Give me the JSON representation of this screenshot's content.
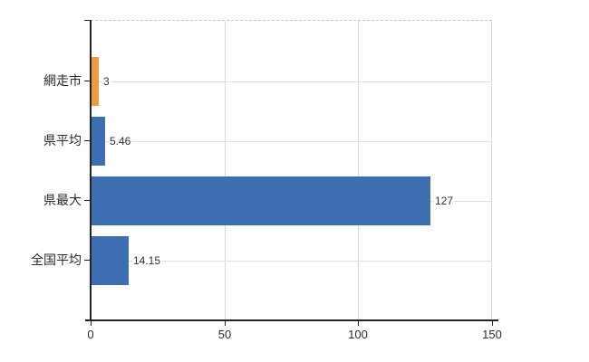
{
  "chart_data": {
    "type": "bar",
    "orientation": "horizontal",
    "title": "",
    "xlabel": "",
    "ylabel": "",
    "categories": [
      "網走市",
      "県平均",
      "県最大",
      "全国平均"
    ],
    "values": [
      3,
      5.46,
      127,
      14.15
    ],
    "value_labels": [
      "3",
      "5.46",
      "127",
      "14.15"
    ],
    "bar_colors": [
      "#EE9A3F",
      "#3D6EB1",
      "#3D6EB1",
      "#3D6EB1"
    ],
    "highlighted_category": "網走市",
    "xlim": [
      0,
      150
    ],
    "x_ticks": [
      0,
      50,
      100,
      150
    ],
    "x_tick_labels": [
      "0",
      "50",
      "100",
      "150"
    ],
    "grid": true,
    "legend": false
  },
  "colors": {
    "highlight_bar": "#EE9A3F",
    "default_bar": "#3D6EB1",
    "axis": "#222222",
    "h_gridline": "#dde3da",
    "v_gridline": "#d8d8d8",
    "plot_top_border": "#c4c8c4",
    "label_text": "#333333",
    "background": "#ffffff"
  }
}
